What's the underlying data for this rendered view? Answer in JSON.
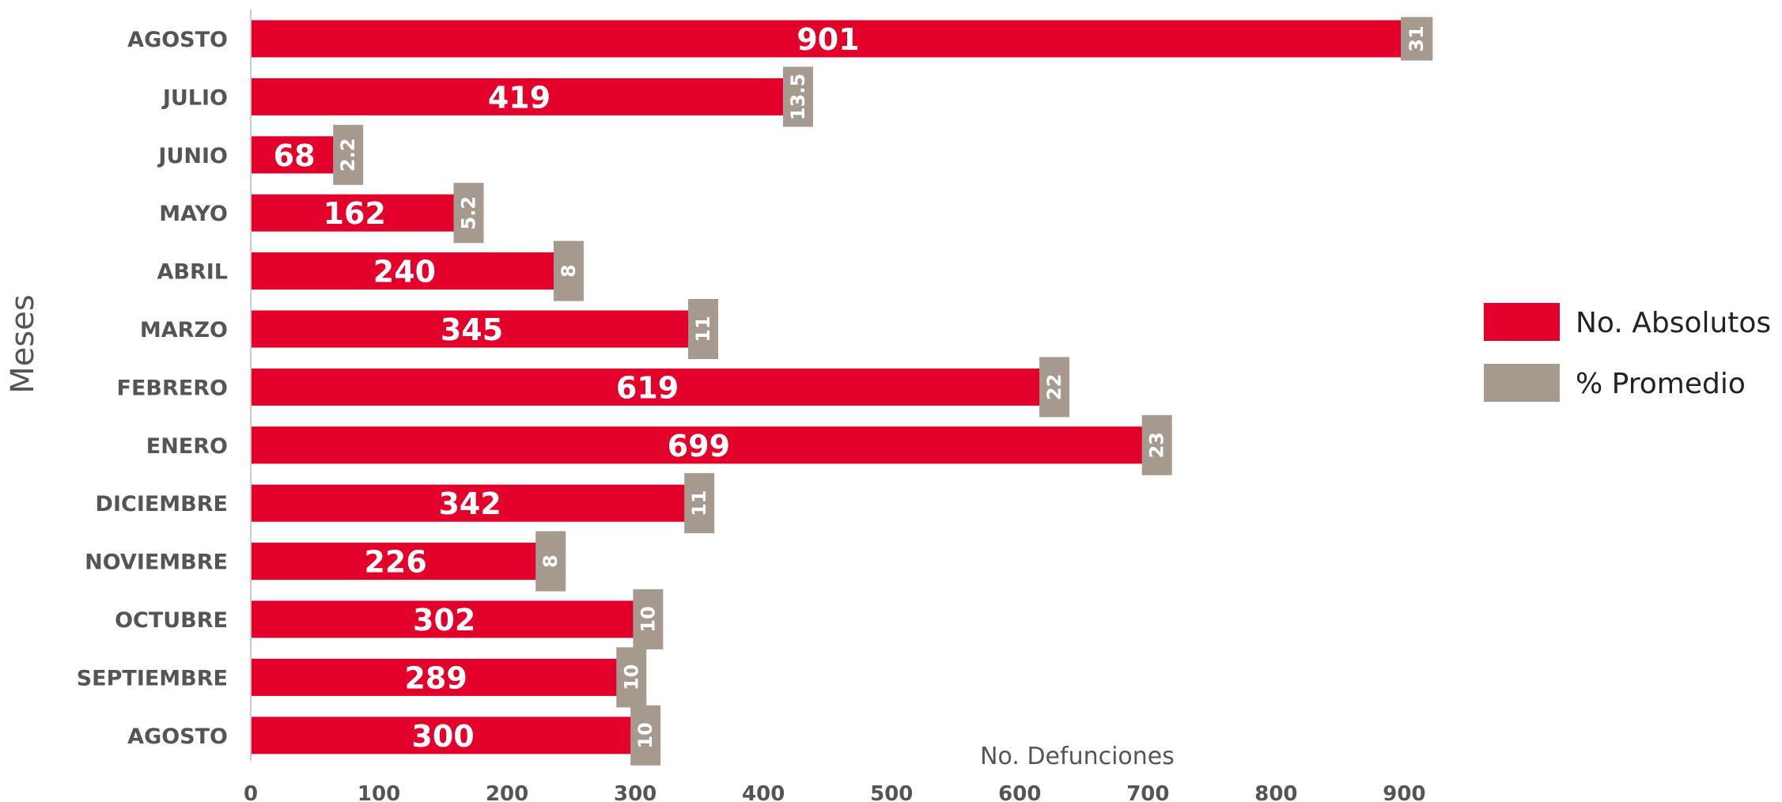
{
  "chart_data": {
    "type": "bar",
    "orientation": "horizontal",
    "categories": [
      "AGOSTO",
      "JULIO",
      "JUNIO",
      "MAYO",
      "ABRIL",
      "MARZO",
      "FEBRERO",
      "ENERO",
      "DICIEMBRE",
      "NOVIEMBRE",
      "OCTUBRE",
      "SEPTIEMBRE",
      "AGOSTO"
    ],
    "series": [
      {
        "name": "No. Absolutos",
        "color": "#e3002b",
        "values": [
          901,
          419,
          68,
          162,
          240,
          345,
          619,
          699,
          342,
          226,
          302,
          289,
          300
        ],
        "labels": [
          "901",
          "419",
          "68",
          "162",
          "240",
          "345",
          "619",
          "699",
          "342",
          "226",
          "302",
          "289",
          "300"
        ]
      },
      {
        "name": "% Promedio",
        "color": "#a69a8f",
        "values": [
          31,
          13.5,
          2.2,
          5.2,
          8,
          11,
          22,
          23,
          11,
          8,
          10,
          10,
          10
        ],
        "labels": [
          "31",
          "13.5",
          "2.2",
          "5.2",
          "8",
          "11",
          "22",
          "23",
          "11",
          "8",
          "10",
          "10",
          "10"
        ]
      }
    ],
    "xlabel": "No. Defunciones",
    "ylabel": "Meses",
    "xlim": [
      0,
      925
    ],
    "xticks": [
      "0",
      "100",
      "200",
      "300",
      "400",
      "500",
      "600",
      "700",
      "800",
      "900"
    ],
    "grid": false,
    "legend": "right"
  }
}
